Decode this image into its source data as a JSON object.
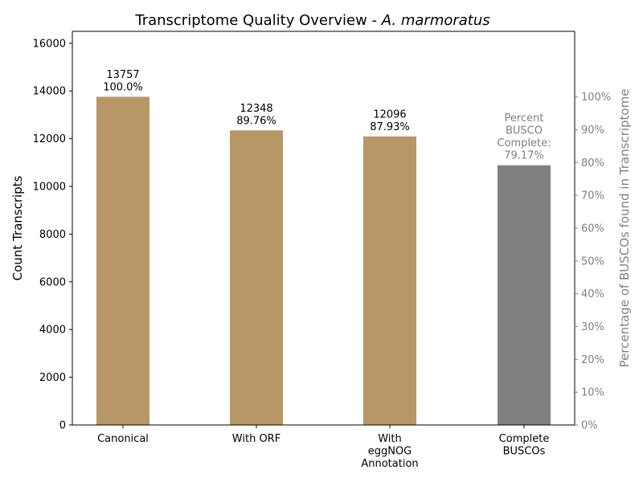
{
  "chart_data": {
    "type": "bar",
    "title_prefix": "Transcriptome Quality Overview - ",
    "title_species": "A. marmoratus",
    "ylabel": "Count Transcripts",
    "ylabel_right": "Percentage of BUSCOs found in Transcriptome",
    "ylim": [
      0,
      16500
    ],
    "yticks": [
      0,
      2000,
      4000,
      6000,
      8000,
      10000,
      12000,
      14000,
      16000
    ],
    "ylim_right": [
      0,
      120
    ],
    "yticks_right": [
      "0%",
      "10%",
      "20%",
      "30%",
      "40%",
      "50%",
      "60%",
      "70%",
      "80%",
      "90%",
      "100%"
    ],
    "categories": [
      [
        "Canonical"
      ],
      [
        "With ORF"
      ],
      [
        "With",
        "eggNOG",
        "Annotation"
      ],
      [
        "Complete",
        "BUSCOs"
      ]
    ],
    "bars": [
      {
        "value": 13757,
        "axis": "left",
        "color": "#b89766",
        "label": [
          "13757",
          "100.0%"
        ]
      },
      {
        "value": 12348,
        "axis": "left",
        "color": "#b89766",
        "label": [
          "12348",
          "89.76%"
        ]
      },
      {
        "value": 12096,
        "axis": "left",
        "color": "#b89766",
        "label": [
          "12096",
          "87.93%"
        ]
      },
      {
        "value": 79.17,
        "axis": "right",
        "color": "#808080",
        "label": [
          "Percent",
          "BUSCO",
          "Complete:",
          "79.17%"
        ]
      }
    ]
  }
}
